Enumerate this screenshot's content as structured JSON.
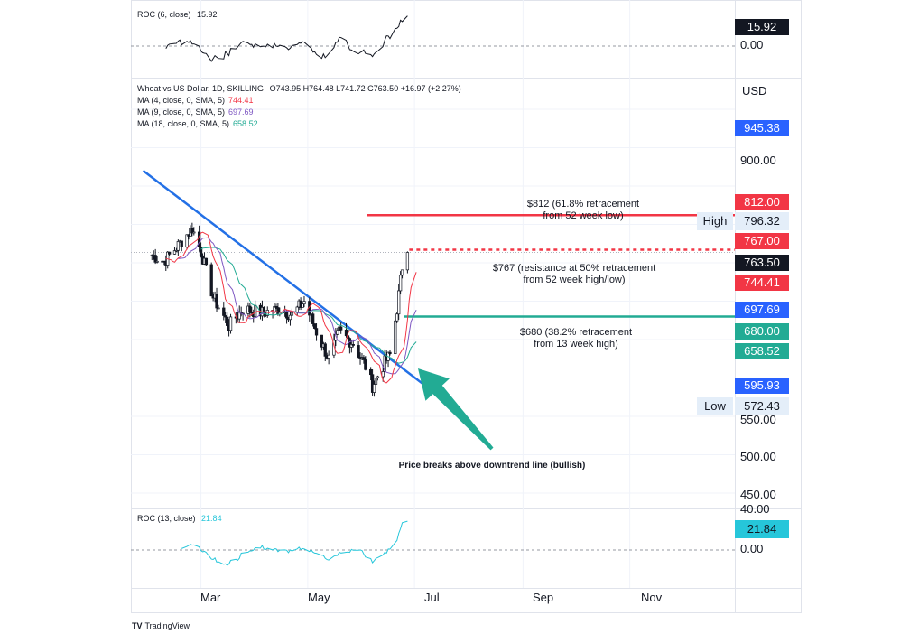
{
  "roc6": {
    "label": "ROC (6, close)",
    "value": "15.92",
    "zero_label": "0.00"
  },
  "main_legend": {
    "title": "Wheat vs US Dollar, 1D, SKILLING",
    "ohlc": "O743.95  H764.48  L741.72  C763.50  +16.97 (+2.27%)"
  },
  "ma_legend": [
    {
      "label": "MA (4, close, 0, SMA, 5)",
      "value": "744.41",
      "color": "#f23645"
    },
    {
      "label": "MA (9, close, 0, SMA, 5)",
      "value": "697.69",
      "color": "#7e57c2"
    },
    {
      "label": "MA (18, close, 0, SMA, 5)",
      "value": "658.52",
      "color": "#22ab94"
    }
  ],
  "currency": "USD",
  "axis_labels": [
    "900.00",
    "550.00",
    "500.00",
    "450.00"
  ],
  "price_tags": [
    {
      "value": "945.38",
      "color": "#2962ff"
    },
    {
      "value": "812.00",
      "color": "#f23645"
    },
    {
      "value": "767.00",
      "color": "#f23645"
    },
    {
      "value": "763.50",
      "color": "#131722"
    },
    {
      "value": "744.41",
      "color": "#f23645"
    },
    {
      "value": "697.69",
      "color": "#2962ff"
    },
    {
      "value": "680.00",
      "color": "#22ab94"
    },
    {
      "value": "658.52",
      "color": "#22ab94"
    },
    {
      "value": "595.93",
      "color": "#2962ff"
    }
  ],
  "high": {
    "label": "High",
    "value": "796.32"
  },
  "low": {
    "label": "Low",
    "value": "572.43"
  },
  "annotations": {
    "a812": [
      "$812 (61.8% retracement",
      "from 52 week low)"
    ],
    "a767": [
      "$767 (resistance at 50% retracement",
      "from 52 week high/low)"
    ],
    "a680": [
      "$680 (38.2% retracement",
      "from 13 week high)"
    ],
    "breakout": "Price breaks above downtrend line (bullish)"
  },
  "roc13": {
    "label": "ROC (13, close)",
    "value": "21.84",
    "zero_label": "0.00",
    "top_label": "40.00"
  },
  "x_labels": [
    "Mar",
    "May",
    "Jul",
    "Sep",
    "Nov"
  ],
  "branding": {
    "logo": "TV",
    "name": "TradingView"
  },
  "chart_data": {
    "type": "candlestick",
    "timeframe": "1D",
    "ylabel": "USD",
    "ylim": [
      430,
      990
    ],
    "levels": [
      {
        "name": "61.8% retracement",
        "value": 812,
        "color": "#f23645"
      },
      {
        "name": "50% retracement resistance",
        "value": 767,
        "color": "#f23645"
      },
      {
        "name": "38.2% retracement",
        "value": 680,
        "color": "#22ab94"
      }
    ],
    "downtrend_line": {
      "start": {
        "date": "2022-01-27",
        "price": 870
      },
      "end": {
        "date": "2022-07-10",
        "price": 585
      }
    },
    "close_path": [
      {
        "date": "2022-02-01",
        "price": 760
      },
      {
        "date": "2022-02-08",
        "price": 752
      },
      {
        "date": "2022-02-15",
        "price": 770
      },
      {
        "date": "2022-02-24",
        "price": 795
      },
      {
        "date": "2022-03-01",
        "price": 765
      },
      {
        "date": "2022-03-08",
        "price": 705
      },
      {
        "date": "2022-03-17",
        "price": 668
      },
      {
        "date": "2022-03-25",
        "price": 690
      },
      {
        "date": "2022-04-05",
        "price": 685
      },
      {
        "date": "2022-04-15",
        "price": 690
      },
      {
        "date": "2022-04-22",
        "price": 682
      },
      {
        "date": "2022-04-29",
        "price": 700
      },
      {
        "date": "2022-05-06",
        "price": 660
      },
      {
        "date": "2022-05-13",
        "price": 625
      },
      {
        "date": "2022-05-19",
        "price": 660
      },
      {
        "date": "2022-05-27",
        "price": 645
      },
      {
        "date": "2022-06-03",
        "price": 615
      },
      {
        "date": "2022-06-07",
        "price": 590
      },
      {
        "date": "2022-06-14",
        "price": 620
      },
      {
        "date": "2022-06-17",
        "price": 630
      },
      {
        "date": "2022-06-21",
        "price": 690
      },
      {
        "date": "2022-06-24",
        "price": 745
      },
      {
        "date": "2022-06-27",
        "price": 763.5
      }
    ]
  }
}
